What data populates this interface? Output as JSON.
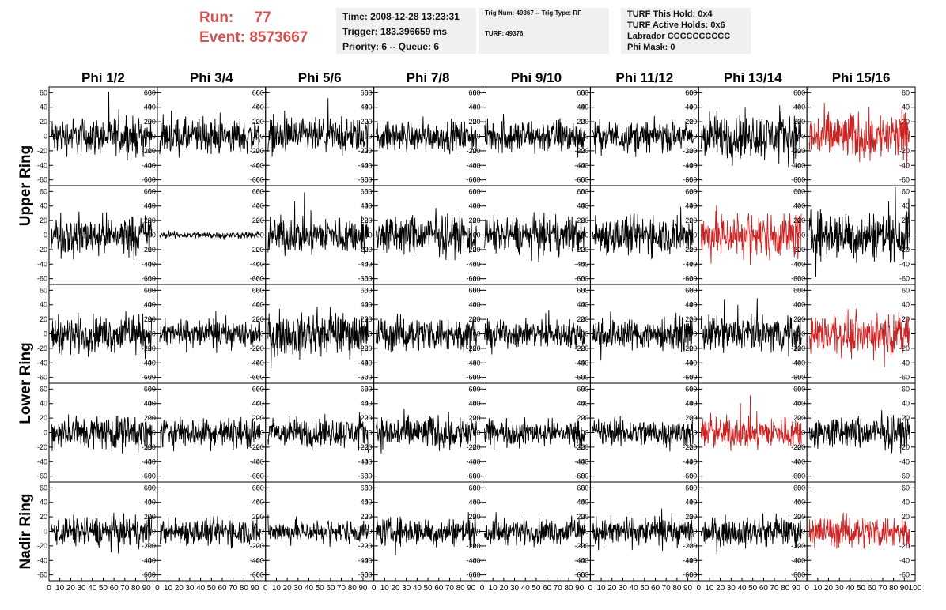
{
  "header": {
    "run_label": "Run:",
    "run_value": "77",
    "event_label": "Event:",
    "event_value": "8573667",
    "time": "Time: 2008-12-28 13:23:31",
    "trigger": "Trigger: 183.396659 ms",
    "priority": "Priority: 6 -- Queue: 6",
    "trig_num": "Trig Num: 49367 -- Trig Type: RF",
    "turf": "TURF: 49376",
    "turf_hold": "TURF This Hold: 0x4",
    "turf_active": "TURF Active Holds: 0x6",
    "labrador": "Labrador CCCCCCCCCC",
    "phi_mask": "Phi Mask: 0"
  },
  "colors": {
    "header_red": "#d35050",
    "trace_normal": "#000000",
    "trace_highlight": "#cc2222",
    "info_bg": "#f0f0f0"
  },
  "chart_data": {
    "type": "line",
    "columns": [
      "Phi 1/2",
      "Phi 3/4",
      "Phi 5/6",
      "Phi 7/8",
      "Phi 9/10",
      "Phi 11/12",
      "Phi 13/14",
      "Phi 15/16"
    ],
    "ring_labels": [
      "Upper Ring",
      "Lower Ring",
      "Nadir Ring"
    ],
    "rows": 5,
    "ylim": [
      -68,
      68
    ],
    "yticks": [
      -60,
      -40,
      -20,
      0,
      20,
      40,
      60
    ],
    "xlim": [
      0,
      100
    ],
    "xticks": [
      0,
      10,
      20,
      30,
      40,
      50,
      60,
      70,
      80,
      90,
      100
    ],
    "samples_per_trace": 260,
    "trace_amplitude": [
      [
        16,
        15,
        15,
        13,
        15,
        13,
        20,
        21
      ],
      [
        17,
        3,
        16,
        17,
        16,
        17,
        20,
        21
      ],
      [
        16,
        12,
        18,
        15,
        12,
        14,
        15,
        17
      ],
      [
        15,
        13,
        13,
        15,
        11,
        12,
        14,
        14
      ],
      [
        13,
        12,
        10,
        12,
        11,
        12,
        12,
        14
      ]
    ],
    "highlighted": [
      [
        0,
        7
      ],
      [
        1,
        6
      ],
      [
        2,
        7
      ],
      [
        3,
        6
      ],
      [
        4,
        7
      ]
    ]
  }
}
